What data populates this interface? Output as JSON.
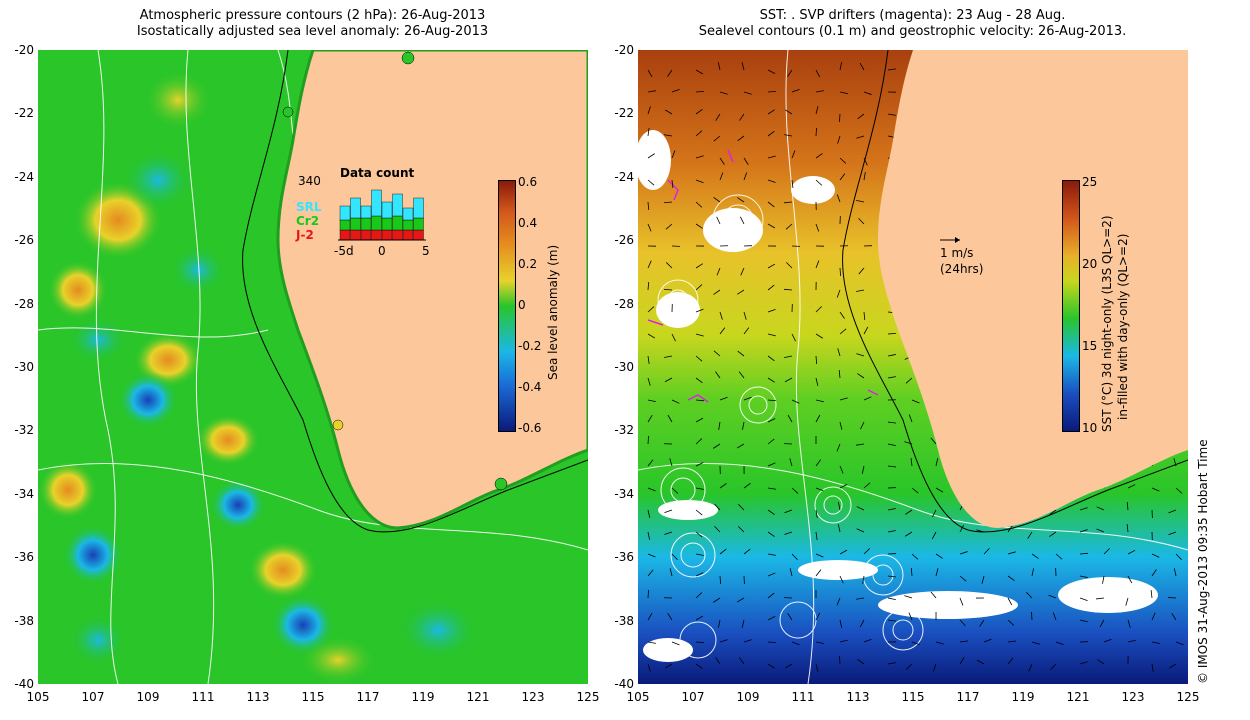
{
  "left_panel": {
    "title_line1": "Atmospheric pressure contours (2 hPa): 26-Aug-2013",
    "title_line2": "Isostatically adjusted sea level anomaly: 26-Aug-2013",
    "colorbar": {
      "label": "Sea level anomaly (m)",
      "ticks": [
        "0.6",
        "0.4",
        "0.2",
        "0",
        "-0.2",
        "-0.4",
        "-0.6"
      ],
      "range": [
        -0.6,
        0.6
      ]
    },
    "inset": {
      "title": "Data count",
      "count_label": "340",
      "series": [
        {
          "name": "SRL",
          "color": "#33e5ff"
        },
        {
          "name": "Cr2",
          "color": "#19c919"
        },
        {
          "name": "J-2",
          "color": "#e51717"
        }
      ],
      "axis_labels": [
        "-5d",
        "0",
        "5"
      ]
    }
  },
  "right_panel": {
    "title_line1": "SST: . SVP drifters (magenta): 23 Aug - 28 Aug.",
    "title_line2": "Sealevel contours (0.1 m) and geostrophic velocity: 26-Aug-2013.",
    "scale_label": "1 m/s",
    "scale_sub": "(24hrs)",
    "colorbar": {
      "label_line1": "SST (°C) 3d night-only (L3S QL>=2)",
      "label_line2": "in-filled with day-only (QL>=2)",
      "ticks": [
        "25",
        "20",
        "15",
        "10"
      ],
      "range": [
        10,
        25
      ]
    }
  },
  "axes": {
    "x_ticks": [
      "105",
      "107",
      "109",
      "111",
      "113",
      "115",
      "117",
      "119",
      "121",
      "123",
      "125"
    ],
    "y_ticks": [
      "-20",
      "-22",
      "-24",
      "-26",
      "-28",
      "-30",
      "-32",
      "-34",
      "-36",
      "-38",
      "-40"
    ],
    "lon_range": [
      105,
      125
    ],
    "lat_range": [
      -40,
      -20
    ]
  },
  "credit": "© IMOS 31-Aug-2013 09:35 Hobart Time",
  "colors": {
    "land": "#fcc89b",
    "ocean_green": "#29c529",
    "ocean_yellow": "#e8d22a",
    "ocean_orange": "#e58b1f",
    "ocean_cyan": "#1bb8e6",
    "ocean_blue": "#1a3fb5",
    "sst_warm": "#c45a15",
    "sst_mid": "#9bd41e",
    "sst_cool": "#1a3fb5"
  }
}
